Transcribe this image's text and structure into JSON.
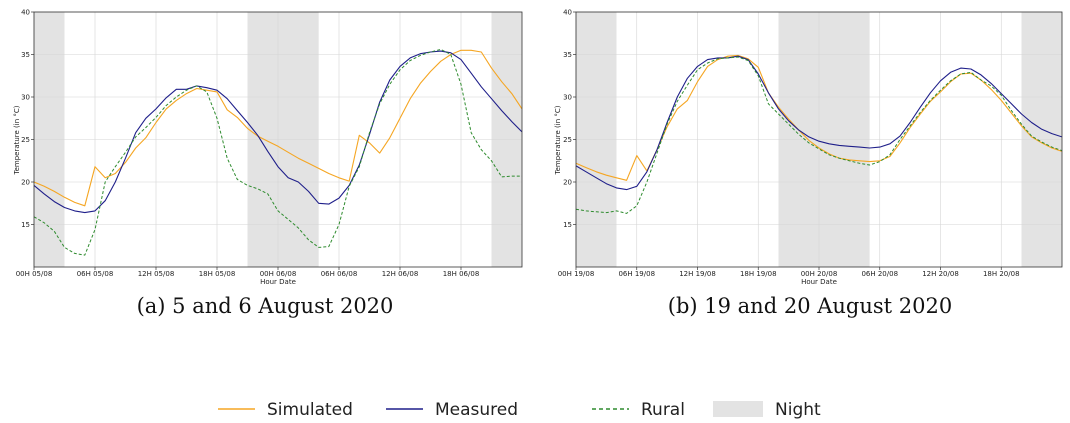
{
  "colors": {
    "simulated": "#f5a623",
    "measured": "#1f1f8a",
    "rural": "#2e8b2e",
    "night": "#e3e3e3",
    "grid": "#d6d6d6"
  },
  "legend": {
    "simulated": "Simulated",
    "measured": "Measured",
    "rural": "Rural",
    "night": "Night"
  },
  "chart_data": [
    {
      "type": "line",
      "caption": "(a) 5 and 6 August 2020",
      "xlabel": "Hour Date",
      "ylabel": "Temperature (in °C)",
      "xlim": [
        0,
        48
      ],
      "ylim": [
        10,
        40
      ],
      "yticks": [
        15,
        20,
        25,
        30,
        35,
        40
      ],
      "xticks": [
        {
          "x": 0,
          "label": "00H 05/08"
        },
        {
          "x": 6,
          "label": "06H 05/08"
        },
        {
          "x": 12,
          "label": "12H 05/08"
        },
        {
          "x": 18,
          "label": "18H 05/08"
        },
        {
          "x": 24,
          "label": "00H 06/08"
        },
        {
          "x": 30,
          "label": "06H 06/08"
        },
        {
          "x": 36,
          "label": "12H 06/08"
        },
        {
          "x": 42,
          "label": "18H 06/08"
        }
      ],
      "night_spans": [
        [
          0,
          3
        ],
        [
          21,
          28
        ],
        [
          45,
          48
        ]
      ],
      "x": [
        0,
        1,
        2,
        3,
        4,
        5,
        6,
        7,
        8,
        9,
        10,
        11,
        12,
        13,
        14,
        15,
        16,
        17,
        18,
        19,
        20,
        21,
        22,
        23,
        24,
        25,
        26,
        27,
        28,
        29,
        30,
        31,
        32,
        33,
        34,
        35,
        36,
        37,
        38,
        39,
        40,
        41,
        42,
        43,
        44,
        45,
        46,
        47,
        48
      ],
      "series": [
        {
          "name": "Simulated",
          "values": [
            20.0,
            19.5,
            18.9,
            18.2,
            17.6,
            17.2,
            21.8,
            20.5,
            21.0,
            22.3,
            24.0,
            25.2,
            27.0,
            28.6,
            29.6,
            30.4,
            31.0,
            30.8,
            30.6,
            28.5,
            27.6,
            26.3,
            25.4,
            24.8,
            24.2,
            23.5,
            22.8,
            22.2,
            21.6,
            21.0,
            20.5,
            20.1,
            25.5,
            24.6,
            23.4,
            25.2,
            27.5,
            29.8,
            31.6,
            33.0,
            34.2,
            35.0,
            35.5,
            35.5,
            35.3,
            33.4,
            31.8,
            30.4,
            28.6
          ]
        },
        {
          "name": "Measured",
          "values": [
            19.6,
            18.6,
            17.7,
            17.0,
            16.6,
            16.4,
            16.6,
            17.8,
            20.0,
            22.8,
            25.8,
            27.5,
            28.6,
            29.9,
            30.9,
            30.9,
            31.3,
            31.1,
            30.8,
            29.8,
            28.4,
            27.0,
            25.5,
            23.6,
            21.8,
            20.5,
            20.0,
            18.9,
            17.5,
            17.4,
            18.1,
            19.6,
            22.0,
            25.6,
            29.4,
            32.0,
            33.6,
            34.6,
            35.1,
            35.3,
            35.4,
            35.2,
            34.4,
            32.8,
            31.2,
            29.8,
            28.4,
            27.1,
            25.9
          ]
        },
        {
          "name": "Rural",
          "values": [
            15.9,
            15.2,
            14.2,
            12.3,
            11.6,
            11.4,
            14.4,
            20.0,
            21.8,
            23.5,
            25.3,
            26.4,
            27.6,
            29.0,
            30.0,
            30.8,
            31.3,
            30.6,
            27.5,
            22.8,
            20.3,
            19.6,
            19.2,
            18.6,
            16.6,
            15.6,
            14.6,
            13.2,
            12.3,
            12.4,
            15.0,
            19.5,
            21.8,
            25.8,
            29.2,
            31.5,
            33.2,
            34.3,
            34.9,
            35.3,
            35.6,
            35.0,
            31.5,
            25.8,
            23.8,
            22.5,
            20.6,
            20.7,
            20.7
          ]
        }
      ]
    },
    {
      "type": "line",
      "caption": "(b) 19 and 20 August 2020",
      "xlabel": "Hour Date",
      "ylabel": "Temperature (in °C)",
      "xlim": [
        0,
        48
      ],
      "ylim": [
        10,
        40
      ],
      "yticks": [
        15,
        20,
        25,
        30,
        35,
        40
      ],
      "xticks": [
        {
          "x": 0,
          "label": "00H 19/08"
        },
        {
          "x": 6,
          "label": "06H 19/08"
        },
        {
          "x": 12,
          "label": "12H 19/08"
        },
        {
          "x": 18,
          "label": "18H 19/08"
        },
        {
          "x": 24,
          "label": "00H 20/08"
        },
        {
          "x": 30,
          "label": "06H 20/08"
        },
        {
          "x": 36,
          "label": "12H 20/08"
        },
        {
          "x": 42,
          "label": "18H 20/08"
        }
      ],
      "night_spans": [
        [
          0,
          4
        ],
        [
          20,
          29
        ],
        [
          44,
          48
        ]
      ],
      "x": [
        0,
        1,
        2,
        3,
        4,
        5,
        6,
        7,
        8,
        9,
        10,
        11,
        12,
        13,
        14,
        15,
        16,
        17,
        18,
        19,
        20,
        21,
        22,
        23,
        24,
        25,
        26,
        27,
        28,
        29,
        30,
        31,
        32,
        33,
        34,
        35,
        36,
        37,
        38,
        39,
        40,
        41,
        42,
        43,
        44,
        45,
        46,
        47,
        48
      ],
      "series": [
        {
          "name": "Simulated",
          "values": [
            22.2,
            21.7,
            21.2,
            20.8,
            20.5,
            20.2,
            23.1,
            21.3,
            23.8,
            26.5,
            28.6,
            29.6,
            31.8,
            33.6,
            34.4,
            34.8,
            34.9,
            34.5,
            33.5,
            30.5,
            28.8,
            27.4,
            26.1,
            24.9,
            24.0,
            23.3,
            22.8,
            22.6,
            22.5,
            22.4,
            22.5,
            23.0,
            24.6,
            26.4,
            28.0,
            29.5,
            30.6,
            31.8,
            32.7,
            32.8,
            32.0,
            30.9,
            29.6,
            28.1,
            26.6,
            25.3,
            24.6,
            24.0,
            23.6
          ]
        },
        {
          "name": "Measured",
          "values": [
            21.9,
            21.2,
            20.5,
            19.8,
            19.3,
            19.1,
            19.5,
            21.2,
            23.8,
            27.0,
            30.0,
            32.2,
            33.6,
            34.4,
            34.6,
            34.6,
            34.8,
            34.4,
            32.7,
            30.5,
            28.6,
            27.2,
            26.1,
            25.3,
            24.8,
            24.5,
            24.3,
            24.2,
            24.1,
            24.0,
            24.1,
            24.5,
            25.4,
            27.0,
            28.8,
            30.5,
            31.9,
            32.9,
            33.4,
            33.3,
            32.6,
            31.6,
            30.4,
            29.2,
            28.0,
            27.0,
            26.2,
            25.7,
            25.3
          ]
        },
        {
          "name": "Rural",
          "values": [
            16.8,
            16.6,
            16.5,
            16.4,
            16.6,
            16.3,
            17.2,
            20.0,
            23.4,
            26.8,
            29.5,
            31.4,
            33.2,
            34.0,
            34.5,
            34.6,
            34.7,
            34.3,
            32.5,
            29.2,
            28.0,
            26.8,
            25.6,
            24.6,
            23.9,
            23.2,
            22.8,
            22.5,
            22.2,
            22.0,
            22.4,
            23.2,
            25.0,
            26.6,
            28.2,
            29.6,
            30.8,
            31.9,
            32.7,
            32.9,
            32.0,
            31.3,
            30.2,
            28.4,
            26.8,
            25.4,
            24.7,
            24.1,
            23.7
          ]
        }
      ]
    }
  ]
}
